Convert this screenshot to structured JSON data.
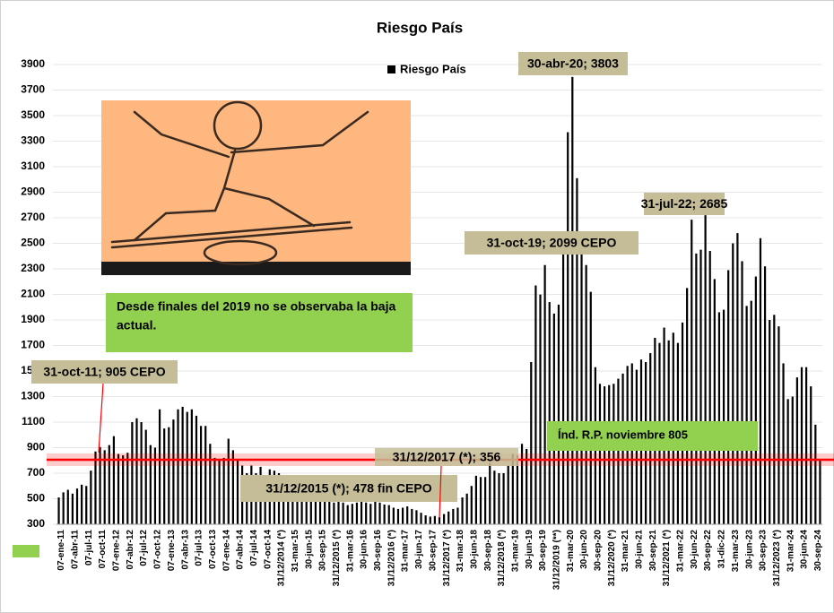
{
  "chart_data": {
    "type": "bar",
    "title": "Riesgo País",
    "legend": "Riesgo País",
    "color": "#000000",
    "grid": true,
    "ylim": [
      300,
      3900
    ],
    "yticks": [
      300,
      500,
      700,
      900,
      1100,
      1300,
      1500,
      1700,
      1900,
      2100,
      2300,
      2500,
      2700,
      2900,
      3100,
      3300,
      3500,
      3700,
      3900
    ],
    "categories": [
      "07-ene-11",
      null,
      null,
      "07-abr-11",
      null,
      null,
      "07-jul-11",
      null,
      null,
      "07-oct-11",
      null,
      null,
      "07-ene-12",
      null,
      null,
      "07-abr-12",
      null,
      null,
      "07-jul-12",
      null,
      null,
      "07-oct-12",
      null,
      null,
      "07-ene-13",
      null,
      null,
      "07-abr-13",
      null,
      null,
      "07-jul-13",
      null,
      null,
      "07-oct-13",
      null,
      null,
      "07-ene-14",
      null,
      null,
      "07-abr-14",
      null,
      null,
      "07-jul-14",
      null,
      null,
      "07-oct-14",
      null,
      null,
      "31/12/2014 (*)",
      null,
      null,
      "31-mar-15",
      null,
      null,
      "30-jun-15",
      null,
      null,
      "30-sep-15",
      null,
      null,
      "31/12/2015 (*)",
      null,
      null,
      "31-mar-16",
      null,
      null,
      "30-jun-16",
      null,
      null,
      "30-sep-16",
      null,
      null,
      "31/12/2016 (*)",
      null,
      null,
      "31-mar-17",
      null,
      null,
      "30-jun-17",
      null,
      null,
      "30-sep-17",
      null,
      null,
      "31/12/2017 (*)",
      null,
      null,
      "31-mar-18",
      null,
      null,
      "30-jun-18",
      null,
      null,
      "30-sep-18",
      null,
      null,
      "31/12/2018 (*)",
      null,
      null,
      "31-mar-19",
      null,
      null,
      "30-jun-19",
      null,
      null,
      "30-sep-19",
      null,
      null,
      "31/12/2019 (**)",
      null,
      null,
      "31-mar-20",
      null,
      null,
      "30-jun-20",
      null,
      null,
      "30-sep-20",
      null,
      null,
      "31/12/2020 (*)",
      null,
      null,
      "31-mar-21",
      null,
      null,
      "30-jun-21",
      null,
      null,
      "30-sep-21",
      null,
      null,
      "31/12/2021 (*)",
      null,
      null,
      "31-mar-22",
      null,
      null,
      "30-jun-22",
      null,
      null,
      "30-sep-22",
      null,
      null,
      "31-dic-22",
      null,
      null,
      "31-mar-23",
      null,
      null,
      "30-jun-23",
      null,
      null,
      "30-sep-23",
      null,
      null,
      "31/12/2023 (*)",
      null,
      null,
      "31-mar-24",
      null,
      null,
      "30-jun-24",
      null,
      null,
      "30-sep-24",
      null
    ],
    "values": [
      510,
      550,
      570,
      540,
      580,
      610,
      600,
      720,
      870,
      905,
      880,
      920,
      990,
      850,
      840,
      860,
      1100,
      1130,
      1100,
      1040,
      920,
      900,
      1200,
      1050,
      1060,
      1120,
      1200,
      1220,
      1180,
      1200,
      1150,
      1070,
      1070,
      930,
      820,
      800,
      820,
      970,
      880,
      800,
      760,
      700,
      760,
      700,
      750,
      680,
      730,
      720,
      700,
      640,
      600,
      620,
      590,
      610,
      640,
      600,
      620,
      580,
      520,
      478,
      470,
      480,
      470,
      450,
      460,
      470,
      480,
      470,
      460,
      480,
      470,
      455,
      450,
      430,
      420,
      430,
      440,
      420,
      410,
      390,
      370,
      360,
      365,
      356,
      380,
      400,
      420,
      430,
      510,
      540,
      600,
      680,
      670,
      670,
      780,
      720,
      700,
      700,
      760,
      850,
      840,
      930,
      890,
      1570,
      2170,
      2099,
      2330,
      2040,
      1950,
      2020,
      2520,
      3370,
      3803,
      3010,
      2580,
      2330,
      2120,
      1530,
      1400,
      1380,
      1390,
      1400,
      1440,
      1480,
      1540,
      1560,
      1510,
      1590,
      1570,
      1640,
      1760,
      1720,
      1840,
      1740,
      1800,
      1720,
      1880,
      2150,
      2685,
      2420,
      2450,
      2720,
      2440,
      2220,
      1960,
      1980,
      2290,
      2500,
      2580,
      2360,
      2010,
      2050,
      2240,
      2540,
      2320,
      1900,
      1940,
      1850,
      1560,
      1280,
      1300,
      1450,
      1530,
      1530,
      1380,
      1080,
      805
    ],
    "reference_line": {
      "value": 805,
      "label": "Índ. R.P. noviembre 805",
      "color": "#ff0000"
    },
    "annotations": [
      "30-abr-20; 3803",
      "31-jul-22; 2685",
      "31-oct-19; 2099 CEPO",
      "31-oct-11; 905  CEPO",
      "31/12/2015 (*); 478 fin CEPO",
      "31/12/2017 (*); 356"
    ],
    "note": [
      "Desde finales del 2019 no se observaba la baja",
      "actual."
    ]
  }
}
